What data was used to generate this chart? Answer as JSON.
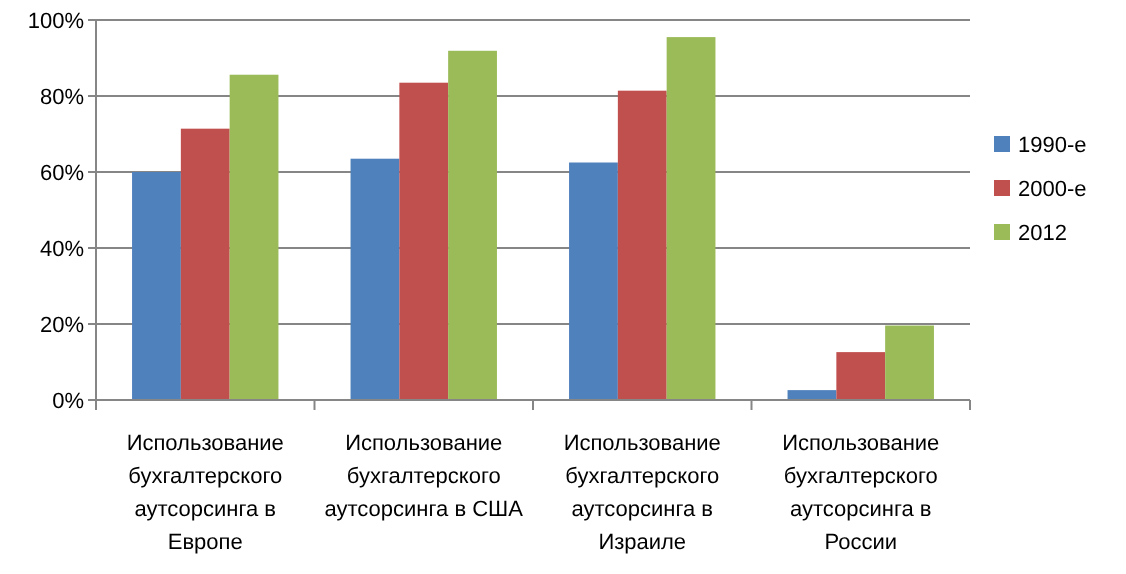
{
  "chart_data": {
    "type": "bar",
    "categories": [
      "Использование бухгалтерского аутсорсинга в Европе",
      "Использование бухгалтерского аутсорсинга в США",
      "Использование бухгалтерского аутсорсинга в Израиле",
      "Использование бухгалтерского аутсорсинга в России"
    ],
    "series": [
      {
        "name": "1990-е",
        "color": "#4f81bd",
        "values": [
          60,
          63.5,
          62.5,
          2.6
        ]
      },
      {
        "name": "2000-е",
        "color": "#c0504d",
        "values": [
          71.4,
          83.5,
          81.4,
          12.6
        ]
      },
      {
        "name": "2012",
        "color": "#9bbb59",
        "values": [
          85.6,
          91.9,
          95.5,
          19.6
        ]
      }
    ],
    "ylim": [
      0,
      100
    ],
    "yticks": [
      {
        "value": 0,
        "label": "0%"
      },
      {
        "value": 20,
        "label": "20%"
      },
      {
        "value": 40,
        "label": "40%"
      },
      {
        "value": 60,
        "label": "60%"
      },
      {
        "value": 80,
        "label": "80%"
      },
      {
        "value": 100,
        "label": "100%"
      }
    ],
    "grid": "y",
    "legend": "right"
  }
}
